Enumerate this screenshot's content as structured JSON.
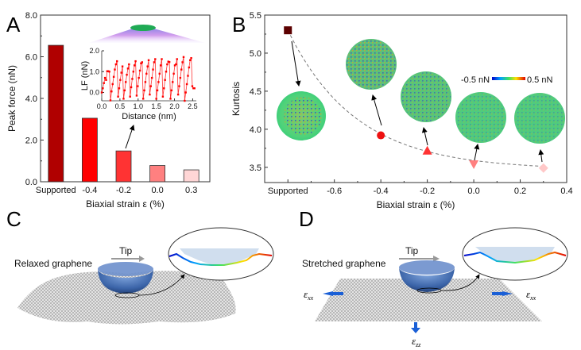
{
  "panels": {
    "a": "A",
    "b": "B",
    "c": "C",
    "d": "D"
  },
  "chart_data": [
    {
      "panel": "A",
      "type": "bar",
      "title": "",
      "xlabel": "Biaxial strain ε (%)",
      "ylabel": "Peak force (nN)",
      "categories": [
        "Supported",
        "-0.4",
        "-0.2",
        "0.0",
        "0.3"
      ],
      "values": [
        6.55,
        3.05,
        1.48,
        0.78,
        0.57
      ],
      "colors": [
        "#b00000",
        "#ff0000",
        "#ff3333",
        "#ff8080",
        "#ffd6d6"
      ],
      "ylim": [
        0,
        8
      ],
      "yticks": [
        "0.0",
        "2.0",
        "4.0",
        "6.0",
        "8.0"
      ],
      "grid": false,
      "inset": {
        "type": "line",
        "xlabel": "Distance (nm)",
        "ylabel": "LF (nN)",
        "xlim": [
          0,
          2.6
        ],
        "ylim": [
          -0.4,
          2.0
        ],
        "xticks": [
          "0.0",
          "0.5",
          "1.0",
          "1.5",
          "2.0",
          "2.5"
        ],
        "yticks": [
          "0.0",
          "1.0",
          "2.0"
        ],
        "color": "#ff0000",
        "x": [
          0.0,
          0.03,
          0.06,
          0.09,
          0.12,
          0.15,
          0.18,
          0.21,
          0.24,
          0.27,
          0.3,
          0.33,
          0.36,
          0.39,
          0.42,
          0.45,
          0.48,
          0.51,
          0.54,
          0.57,
          0.6,
          0.63,
          0.66,
          0.69,
          0.72,
          0.75,
          0.78,
          0.81,
          0.84,
          0.87,
          0.9,
          0.93,
          0.96,
          0.99,
          1.02,
          1.05,
          1.08,
          1.11,
          1.14,
          1.17,
          1.2,
          1.23,
          1.26,
          1.29,
          1.32,
          1.35,
          1.38,
          1.41,
          1.44,
          1.47,
          1.5,
          1.53,
          1.56,
          1.59,
          1.62,
          1.65,
          1.68,
          1.71,
          1.74,
          1.77,
          1.8,
          1.83,
          1.86,
          1.89,
          1.92,
          1.95,
          1.98,
          2.01,
          2.04,
          2.07,
          2.1,
          2.13,
          2.16,
          2.19,
          2.22,
          2.25,
          2.28,
          2.31,
          2.34,
          2.37,
          2.4,
          2.43,
          2.46,
          2.49,
          2.52,
          2.55
        ],
        "y": [
          0.0,
          0.2,
          0.45,
          0.7,
          0.6,
          1.02,
          1.02,
          1.0,
          -0.38,
          0.05,
          0.4,
          0.75,
          1.1,
          1.35,
          1.5,
          -0.2,
          0.2,
          0.6,
          0.95,
          1.25,
          -0.3,
          0.1,
          0.5,
          0.85,
          1.15,
          1.35,
          -0.2,
          0.25,
          0.65,
          1.0,
          1.3,
          1.5,
          -0.15,
          0.3,
          0.7,
          1.05,
          1.4,
          1.45,
          -0.3,
          0.1,
          0.5,
          0.9,
          1.25,
          1.55,
          -0.1,
          0.3,
          0.7,
          1.1,
          1.45,
          1.6,
          -0.3,
          0.1,
          0.5,
          0.9,
          1.3,
          1.6,
          -0.2,
          0.2,
          0.6,
          1.0,
          1.35,
          1.48,
          1.46,
          -0.3,
          0.1,
          0.5,
          0.9,
          1.3,
          1.35,
          1.6,
          -0.1,
          0.3,
          0.7,
          1.1,
          1.45,
          1.7,
          -0.4,
          0.0,
          0.4,
          0.8,
          1.2,
          1.55,
          1.65,
          0.3,
          0.2,
          0.2
        ]
      },
      "annotation_image": "tip-on-graphene-render"
    },
    {
      "panel": "B",
      "type": "scatter",
      "title": "",
      "xlabel": "Biaxial strain ε (%)",
      "ylabel": "Kurtosis",
      "xlim": [
        -0.9,
        0.4
      ],
      "ylim": [
        3.3,
        5.5
      ],
      "xticks": [
        {
          "value": -0.8,
          "label": "Supported"
        },
        {
          "value": -0.6,
          "label": "-0.6"
        },
        {
          "value": -0.4,
          "label": "-0.4"
        },
        {
          "value": -0.2,
          "label": "-0.2"
        },
        {
          "value": 0.0,
          "label": "0.0"
        },
        {
          "value": 0.2,
          "label": "0.2"
        },
        {
          "value": 0.4,
          "label": "0.4"
        }
      ],
      "yticks": [
        "3.5",
        "4.0",
        "4.5",
        "5.0",
        "5.5"
      ],
      "points": [
        {
          "x": -0.8,
          "y": 5.3,
          "marker": "square",
          "color": "#5c0000"
        },
        {
          "x": -0.4,
          "y": 3.92,
          "marker": "circle",
          "color": "#ee1111"
        },
        {
          "x": -0.2,
          "y": 3.72,
          "marker": "triangle-up",
          "color": "#ff3333"
        },
        {
          "x": 0.0,
          "y": 3.54,
          "marker": "triangle-down",
          "color": "#ff8080"
        },
        {
          "x": 0.3,
          "y": 3.49,
          "marker": "diamond",
          "color": "#ffc8c8"
        }
      ],
      "fit_line": "dashed-exponential-decay",
      "colorbar": {
        "min_label": "-0.5 nN",
        "max_label": "0.5 nN"
      },
      "grid": false
    }
  ],
  "panel_c": {
    "label": "Relaxed graphene",
    "tip_label": "Tip"
  },
  "panel_d": {
    "label": "Stretched graphene",
    "tip_label": "Tip",
    "strain_xx": "ε",
    "strain_xx_sub": "xx",
    "strain_zz": "ε",
    "strain_zz_sub": "zz"
  },
  "colors": {
    "tip_blue": "#3a6db5",
    "arrow_blue": "#1a5fd6",
    "mesh_gray": "#9a9a9a"
  }
}
